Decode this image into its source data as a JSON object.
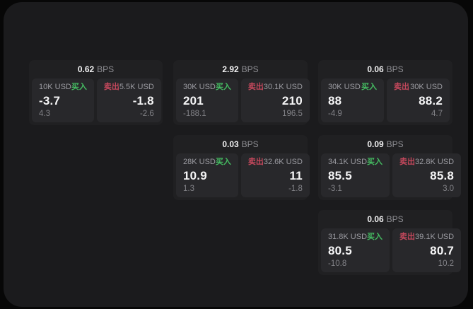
{
  "labels": {
    "bps_unit": "BPS",
    "buy": "买入",
    "sell": "卖出"
  },
  "colors": {
    "page_bg": "#070707",
    "window_bg": "#1b1b1d",
    "card_bg": "#202022",
    "panel_bg": "#28282b",
    "buy_green": "#45bd62",
    "sell_red": "#c4485c",
    "value_white": "#f5f5f6",
    "muted_gray": "#9b9ba1"
  },
  "cards": [
    {
      "bps": "0.62",
      "buy": {
        "amount": "10K USD",
        "price": "-3.7",
        "delta": "4.3"
      },
      "sell": {
        "amount": "5.5K USD",
        "price": "-1.8",
        "delta": "-2.6"
      }
    },
    {
      "bps": "2.92",
      "buy": {
        "amount": "30K USD",
        "price": "201",
        "delta": "-188.1"
      },
      "sell": {
        "amount": "30.1K USD",
        "price": "210",
        "delta": "196.5"
      }
    },
    {
      "bps": "0.06",
      "buy": {
        "amount": "30K USD",
        "price": "88",
        "delta": "-4.9"
      },
      "sell": {
        "amount": "30K USD",
        "price": "88.2",
        "delta": "4.7"
      }
    },
    {
      "bps": "0.03",
      "buy": {
        "amount": "28K USD",
        "price": "10.9",
        "delta": "1.3"
      },
      "sell": {
        "amount": "32.6K USD",
        "price": "11",
        "delta": "-1.8"
      }
    },
    {
      "bps": "0.09",
      "buy": {
        "amount": "34.1K USD",
        "price": "85.5",
        "delta": "-3.1"
      },
      "sell": {
        "amount": "32.8K USD",
        "price": "85.8",
        "delta": "3.0"
      }
    },
    {
      "bps": "0.06",
      "buy": {
        "amount": "31.8K USD",
        "price": "80.5",
        "delta": "-10.8"
      },
      "sell": {
        "amount": "39.1K USD",
        "price": "80.7",
        "delta": "10.2"
      }
    }
  ]
}
